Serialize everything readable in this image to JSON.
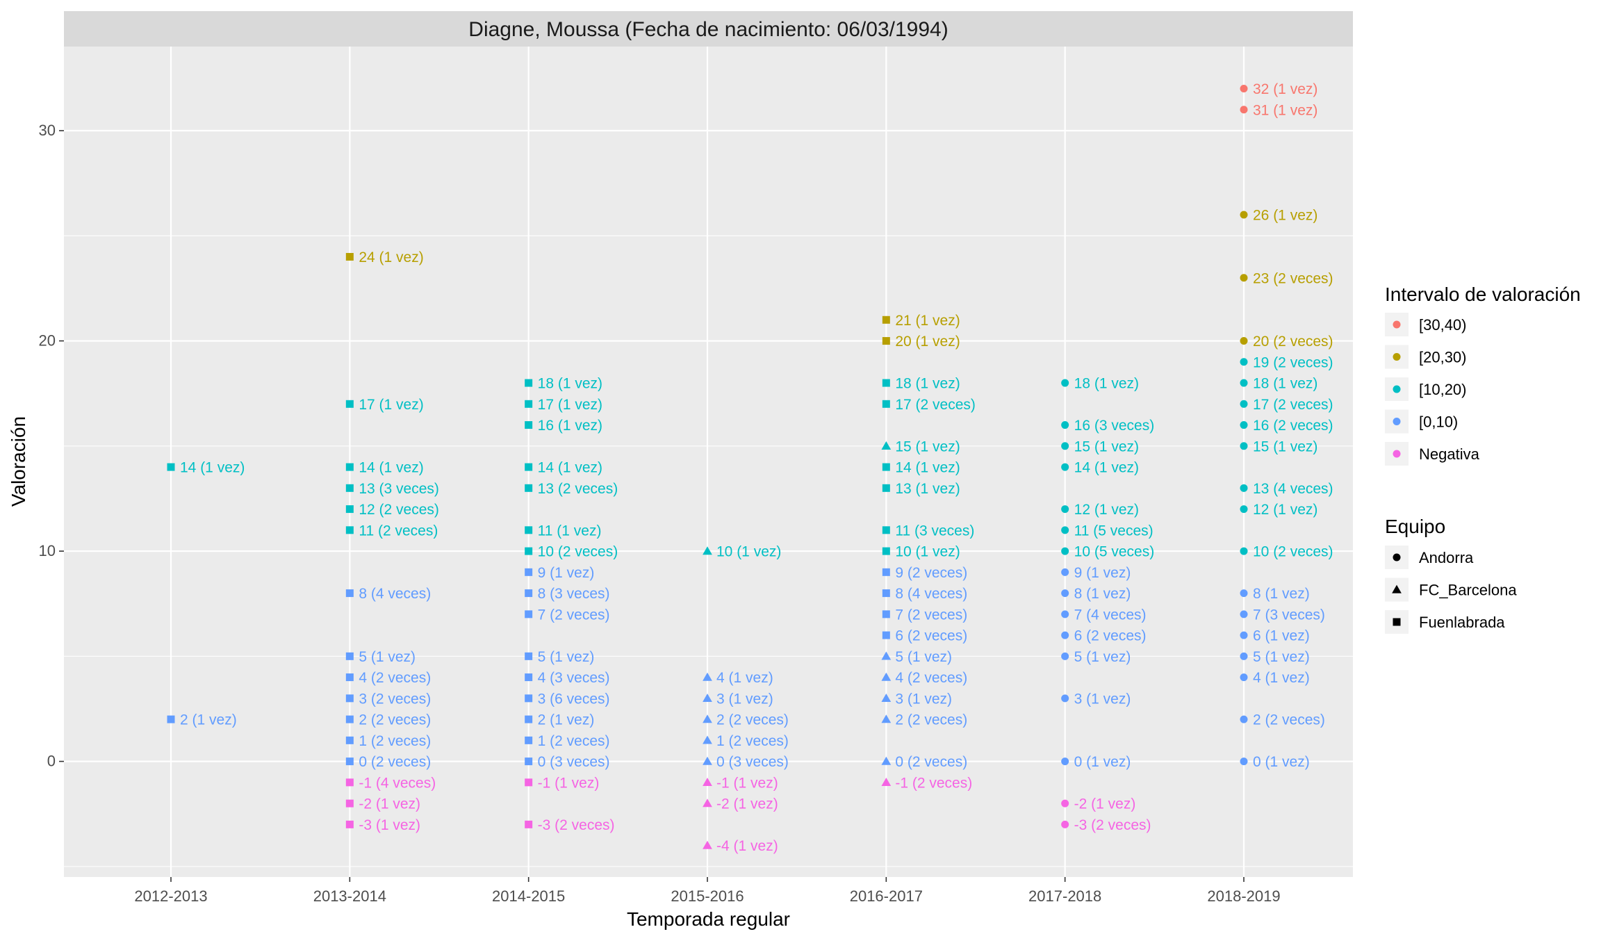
{
  "chart_data": {
    "type": "scatter",
    "title": "Diagne, Moussa (Fecha de nacimiento: 06/03/1994)",
    "xlabel": "Temporada regular",
    "ylabel": "Valoración",
    "categories": [
      "2012-2013",
      "2013-2014",
      "2014-2015",
      "2015-2016",
      "2016-2017",
      "2017-2018",
      "2018-2019"
    ],
    "ylim": [
      -5.5,
      34
    ],
    "yticks": [
      0,
      10,
      20,
      30
    ],
    "grid": true,
    "legend_placement": "right",
    "legends": {
      "color": {
        "title": "Intervalo de valoración",
        "items": [
          {
            "label": "[30,40)",
            "color": "#F8766D"
          },
          {
            "label": "[20,30)",
            "color": "#B79F00"
          },
          {
            "label": "[10,20)",
            "color": "#00BFC4"
          },
          {
            "label": "[0,10)",
            "color": "#619CFF"
          },
          {
            "label": "Negativa",
            "color": "#F564E3"
          }
        ]
      },
      "shape": {
        "title": "Equipo",
        "items": [
          {
            "label": "Andorra",
            "shape": "circle"
          },
          {
            "label": "FC_Barcelona",
            "shape": "triangle"
          },
          {
            "label": "Fuenlabrada",
            "shape": "square"
          }
        ]
      }
    },
    "points": [
      {
        "x": "2012-2013",
        "y": 14,
        "label": "14 (1 vez)",
        "team": "Fuenlabrada"
      },
      {
        "x": "2012-2013",
        "y": 2,
        "label": "2 (1 vez)",
        "team": "Fuenlabrada"
      },
      {
        "x": "2013-2014",
        "y": 24,
        "label": "24 (1 vez)",
        "team": "Fuenlabrada"
      },
      {
        "x": "2013-2014",
        "y": 17,
        "label": "17 (1 vez)",
        "team": "Fuenlabrada"
      },
      {
        "x": "2013-2014",
        "y": 14,
        "label": "14 (1 vez)",
        "team": "Fuenlabrada"
      },
      {
        "x": "2013-2014",
        "y": 13,
        "label": "13 (3 veces)",
        "team": "Fuenlabrada"
      },
      {
        "x": "2013-2014",
        "y": 12,
        "label": "12 (2 veces)",
        "team": "Fuenlabrada"
      },
      {
        "x": "2013-2014",
        "y": 11,
        "label": "11 (2 veces)",
        "team": "Fuenlabrada"
      },
      {
        "x": "2013-2014",
        "y": 8,
        "label": "8 (4 veces)",
        "team": "Fuenlabrada"
      },
      {
        "x": "2013-2014",
        "y": 5,
        "label": "5 (1 vez)",
        "team": "Fuenlabrada"
      },
      {
        "x": "2013-2014",
        "y": 4,
        "label": "4 (2 veces)",
        "team": "Fuenlabrada"
      },
      {
        "x": "2013-2014",
        "y": 3,
        "label": "3 (2 veces)",
        "team": "Fuenlabrada"
      },
      {
        "x": "2013-2014",
        "y": 2,
        "label": "2 (2 veces)",
        "team": "Fuenlabrada"
      },
      {
        "x": "2013-2014",
        "y": 1,
        "label": "1 (2 veces)",
        "team": "Fuenlabrada"
      },
      {
        "x": "2013-2014",
        "y": 0,
        "label": "0 (2 veces)",
        "team": "Fuenlabrada"
      },
      {
        "x": "2013-2014",
        "y": -1,
        "label": "-1 (4 veces)",
        "team": "Fuenlabrada"
      },
      {
        "x": "2013-2014",
        "y": -2,
        "label": "-2 (1 vez)",
        "team": "Fuenlabrada"
      },
      {
        "x": "2013-2014",
        "y": -3,
        "label": "-3 (1 vez)",
        "team": "Fuenlabrada"
      },
      {
        "x": "2014-2015",
        "y": 18,
        "label": "18 (1 vez)",
        "team": "Fuenlabrada"
      },
      {
        "x": "2014-2015",
        "y": 17,
        "label": "17 (1 vez)",
        "team": "Fuenlabrada"
      },
      {
        "x": "2014-2015",
        "y": 16,
        "label": "16 (1 vez)",
        "team": "Fuenlabrada"
      },
      {
        "x": "2014-2015",
        "y": 14,
        "label": "14 (1 vez)",
        "team": "Fuenlabrada"
      },
      {
        "x": "2014-2015",
        "y": 13,
        "label": "13 (2 veces)",
        "team": "Fuenlabrada"
      },
      {
        "x": "2014-2015",
        "y": 11,
        "label": "11 (1 vez)",
        "team": "Fuenlabrada"
      },
      {
        "x": "2014-2015",
        "y": 10,
        "label": "10 (2 veces)",
        "team": "Fuenlabrada"
      },
      {
        "x": "2014-2015",
        "y": 9,
        "label": "9 (1 vez)",
        "team": "Fuenlabrada"
      },
      {
        "x": "2014-2015",
        "y": 8,
        "label": "8 (3 veces)",
        "team": "Fuenlabrada"
      },
      {
        "x": "2014-2015",
        "y": 7,
        "label": "7 (2 veces)",
        "team": "Fuenlabrada"
      },
      {
        "x": "2014-2015",
        "y": 5,
        "label": "5 (1 vez)",
        "team": "Fuenlabrada"
      },
      {
        "x": "2014-2015",
        "y": 4,
        "label": "4 (3 veces)",
        "team": "Fuenlabrada"
      },
      {
        "x": "2014-2015",
        "y": 3,
        "label": "3 (6 veces)",
        "team": "Fuenlabrada"
      },
      {
        "x": "2014-2015",
        "y": 2,
        "label": "2 (1 vez)",
        "team": "Fuenlabrada"
      },
      {
        "x": "2014-2015",
        "y": 1,
        "label": "1 (2 veces)",
        "team": "Fuenlabrada"
      },
      {
        "x": "2014-2015",
        "y": 0,
        "label": "0 (3 veces)",
        "team": "Fuenlabrada"
      },
      {
        "x": "2014-2015",
        "y": -1,
        "label": "-1 (1 vez)",
        "team": "Fuenlabrada"
      },
      {
        "x": "2014-2015",
        "y": -3,
        "label": "-3 (2 veces)",
        "team": "Fuenlabrada"
      },
      {
        "x": "2015-2016",
        "y": 10,
        "label": "10 (1 vez)",
        "team": "FC_Barcelona"
      },
      {
        "x": "2015-2016",
        "y": 4,
        "label": "4 (1 vez)",
        "team": "FC_Barcelona"
      },
      {
        "x": "2015-2016",
        "y": 3,
        "label": "3 (1 vez)",
        "team": "FC_Barcelona"
      },
      {
        "x": "2015-2016",
        "y": 2,
        "label": "2 (2 veces)",
        "team": "FC_Barcelona"
      },
      {
        "x": "2015-2016",
        "y": 1,
        "label": "1 (2 veces)",
        "team": "FC_Barcelona"
      },
      {
        "x": "2015-2016",
        "y": 0,
        "label": "0 (3 veces)",
        "team": "FC_Barcelona"
      },
      {
        "x": "2015-2016",
        "y": -1,
        "label": "-1 (1 vez)",
        "team": "FC_Barcelona"
      },
      {
        "x": "2015-2016",
        "y": -2,
        "label": "-2 (1 vez)",
        "team": "FC_Barcelona"
      },
      {
        "x": "2015-2016",
        "y": -4,
        "label": "-4 (1 vez)",
        "team": "FC_Barcelona"
      },
      {
        "x": "2016-2017",
        "y": 21,
        "label": "21 (1 vez)",
        "team": "Fuenlabrada"
      },
      {
        "x": "2016-2017",
        "y": 20,
        "label": "20 (1 vez)",
        "team": "Fuenlabrada"
      },
      {
        "x": "2016-2017",
        "y": 18,
        "label": "18 (1 vez)",
        "team": "Fuenlabrada"
      },
      {
        "x": "2016-2017",
        "y": 17,
        "label": "17 (2 veces)",
        "team": "Fuenlabrada"
      },
      {
        "x": "2016-2017",
        "y": 15,
        "label": "15 (1 vez)",
        "team": "FC_Barcelona"
      },
      {
        "x": "2016-2017",
        "y": 14,
        "label": "14 (1 vez)",
        "team": "Fuenlabrada"
      },
      {
        "x": "2016-2017",
        "y": 13,
        "label": "13 (1 vez)",
        "team": "Fuenlabrada"
      },
      {
        "x": "2016-2017",
        "y": 11,
        "label": "11 (3 veces)",
        "team": "Fuenlabrada"
      },
      {
        "x": "2016-2017",
        "y": 10,
        "label": "10 (1 vez)",
        "team": "Fuenlabrada"
      },
      {
        "x": "2016-2017",
        "y": 9,
        "label": "9 (2 veces)",
        "team": "Fuenlabrada"
      },
      {
        "x": "2016-2017",
        "y": 8,
        "label": "8 (4 veces)",
        "team": "Fuenlabrada"
      },
      {
        "x": "2016-2017",
        "y": 7,
        "label": "7 (2 veces)",
        "team": "Fuenlabrada"
      },
      {
        "x": "2016-2017",
        "y": 6,
        "label": "6 (2 veces)",
        "team": "Fuenlabrada"
      },
      {
        "x": "2016-2017",
        "y": 5,
        "label": "5 (1 vez)",
        "team": "FC_Barcelona"
      },
      {
        "x": "2016-2017",
        "y": 4,
        "label": "4 (2 veces)",
        "team": "FC_Barcelona"
      },
      {
        "x": "2016-2017",
        "y": 3,
        "label": "3 (1 vez)",
        "team": "FC_Barcelona"
      },
      {
        "x": "2016-2017",
        "y": 2,
        "label": "2 (2 veces)",
        "team": "FC_Barcelona"
      },
      {
        "x": "2016-2017",
        "y": 0,
        "label": "0 (2 veces)",
        "team": "FC_Barcelona"
      },
      {
        "x": "2016-2017",
        "y": -1,
        "label": "-1 (2 veces)",
        "team": "FC_Barcelona"
      },
      {
        "x": "2017-2018",
        "y": 18,
        "label": "18 (1 vez)",
        "team": "Andorra"
      },
      {
        "x": "2017-2018",
        "y": 16,
        "label": "16 (3 veces)",
        "team": "Andorra"
      },
      {
        "x": "2017-2018",
        "y": 15,
        "label": "15 (1 vez)",
        "team": "Andorra"
      },
      {
        "x": "2017-2018",
        "y": 14,
        "label": "14 (1 vez)",
        "team": "Andorra"
      },
      {
        "x": "2017-2018",
        "y": 12,
        "label": "12 (1 vez)",
        "team": "Andorra"
      },
      {
        "x": "2017-2018",
        "y": 11,
        "label": "11 (5 veces)",
        "team": "Andorra"
      },
      {
        "x": "2017-2018",
        "y": 10,
        "label": "10 (5 veces)",
        "team": "Andorra"
      },
      {
        "x": "2017-2018",
        "y": 9,
        "label": "9 (1 vez)",
        "team": "Andorra"
      },
      {
        "x": "2017-2018",
        "y": 8,
        "label": "8 (1 vez)",
        "team": "Andorra"
      },
      {
        "x": "2017-2018",
        "y": 7,
        "label": "7 (4 veces)",
        "team": "Andorra"
      },
      {
        "x": "2017-2018",
        "y": 6,
        "label": "6 (2 veces)",
        "team": "Andorra"
      },
      {
        "x": "2017-2018",
        "y": 5,
        "label": "5 (1 vez)",
        "team": "Andorra"
      },
      {
        "x": "2017-2018",
        "y": 3,
        "label": "3 (1 vez)",
        "team": "Andorra"
      },
      {
        "x": "2017-2018",
        "y": 0,
        "label": "0 (1 vez)",
        "team": "Andorra"
      },
      {
        "x": "2017-2018",
        "y": -2,
        "label": "-2 (1 vez)",
        "team": "Andorra"
      },
      {
        "x": "2017-2018",
        "y": -3,
        "label": "-3 (2 veces)",
        "team": "Andorra"
      },
      {
        "x": "2018-2019",
        "y": 32,
        "label": "32 (1 vez)",
        "team": "Andorra"
      },
      {
        "x": "2018-2019",
        "y": 31,
        "label": "31 (1 vez)",
        "team": "Andorra"
      },
      {
        "x": "2018-2019",
        "y": 26,
        "label": "26 (1 vez)",
        "team": "Andorra"
      },
      {
        "x": "2018-2019",
        "y": 23,
        "label": "23 (2 veces)",
        "team": "Andorra"
      },
      {
        "x": "2018-2019",
        "y": 20,
        "label": "20 (2 veces)",
        "team": "Andorra"
      },
      {
        "x": "2018-2019",
        "y": 19,
        "label": "19 (2 veces)",
        "team": "Andorra"
      },
      {
        "x": "2018-2019",
        "y": 18,
        "label": "18 (1 vez)",
        "team": "Andorra"
      },
      {
        "x": "2018-2019",
        "y": 17,
        "label": "17 (2 veces)",
        "team": "Andorra"
      },
      {
        "x": "2018-2019",
        "y": 16,
        "label": "16 (2 veces)",
        "team": "Andorra"
      },
      {
        "x": "2018-2019",
        "y": 15,
        "label": "15 (1 vez)",
        "team": "Andorra"
      },
      {
        "x": "2018-2019",
        "y": 13,
        "label": "13 (4 veces)",
        "team": "Andorra"
      },
      {
        "x": "2018-2019",
        "y": 12,
        "label": "12 (1 vez)",
        "team": "Andorra"
      },
      {
        "x": "2018-2019",
        "y": 10,
        "label": "10 (2 veces)",
        "team": "Andorra"
      },
      {
        "x": "2018-2019",
        "y": 8,
        "label": "8 (1 vez)",
        "team": "Andorra"
      },
      {
        "x": "2018-2019",
        "y": 7,
        "label": "7 (3 veces)",
        "team": "Andorra"
      },
      {
        "x": "2018-2019",
        "y": 6,
        "label": "6 (1 vez)",
        "team": "Andorra"
      },
      {
        "x": "2018-2019",
        "y": 5,
        "label": "5 (1 vez)",
        "team": "Andorra"
      },
      {
        "x": "2018-2019",
        "y": 4,
        "label": "4 (1 vez)",
        "team": "Andorra"
      },
      {
        "x": "2018-2019",
        "y": 2,
        "label": "2 (2 veces)",
        "team": "Andorra"
      },
      {
        "x": "2018-2019",
        "y": 0,
        "label": "0 (1 vez)",
        "team": "Andorra"
      }
    ]
  }
}
